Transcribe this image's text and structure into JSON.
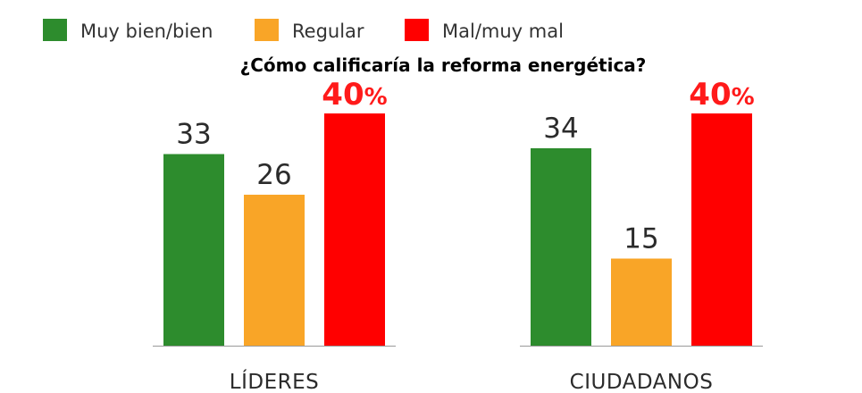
{
  "chart_data": {
    "type": "bar",
    "title": "¿Cómo calificaría la reforma energética?",
    "categories": [
      "LÍDERES",
      "CIUDADANOS"
    ],
    "series": [
      {
        "name": "Muy bien/bien",
        "color": "#2d8c2d",
        "values": [
          33,
          34
        ]
      },
      {
        "name": "Regular",
        "color": "#f9a527",
        "values": [
          26,
          15
        ]
      },
      {
        "name": "Mal/muy mal",
        "color": "#ff0000",
        "values": [
          40,
          40
        ]
      }
    ],
    "data_labels": [
      [
        "33",
        "26",
        "40%"
      ],
      [
        "34",
        "15",
        "40%"
      ]
    ],
    "highlight_series": "Mal/muy mal",
    "ylim": [
      0,
      40
    ],
    "grid": false,
    "legend_position": "top-left"
  }
}
